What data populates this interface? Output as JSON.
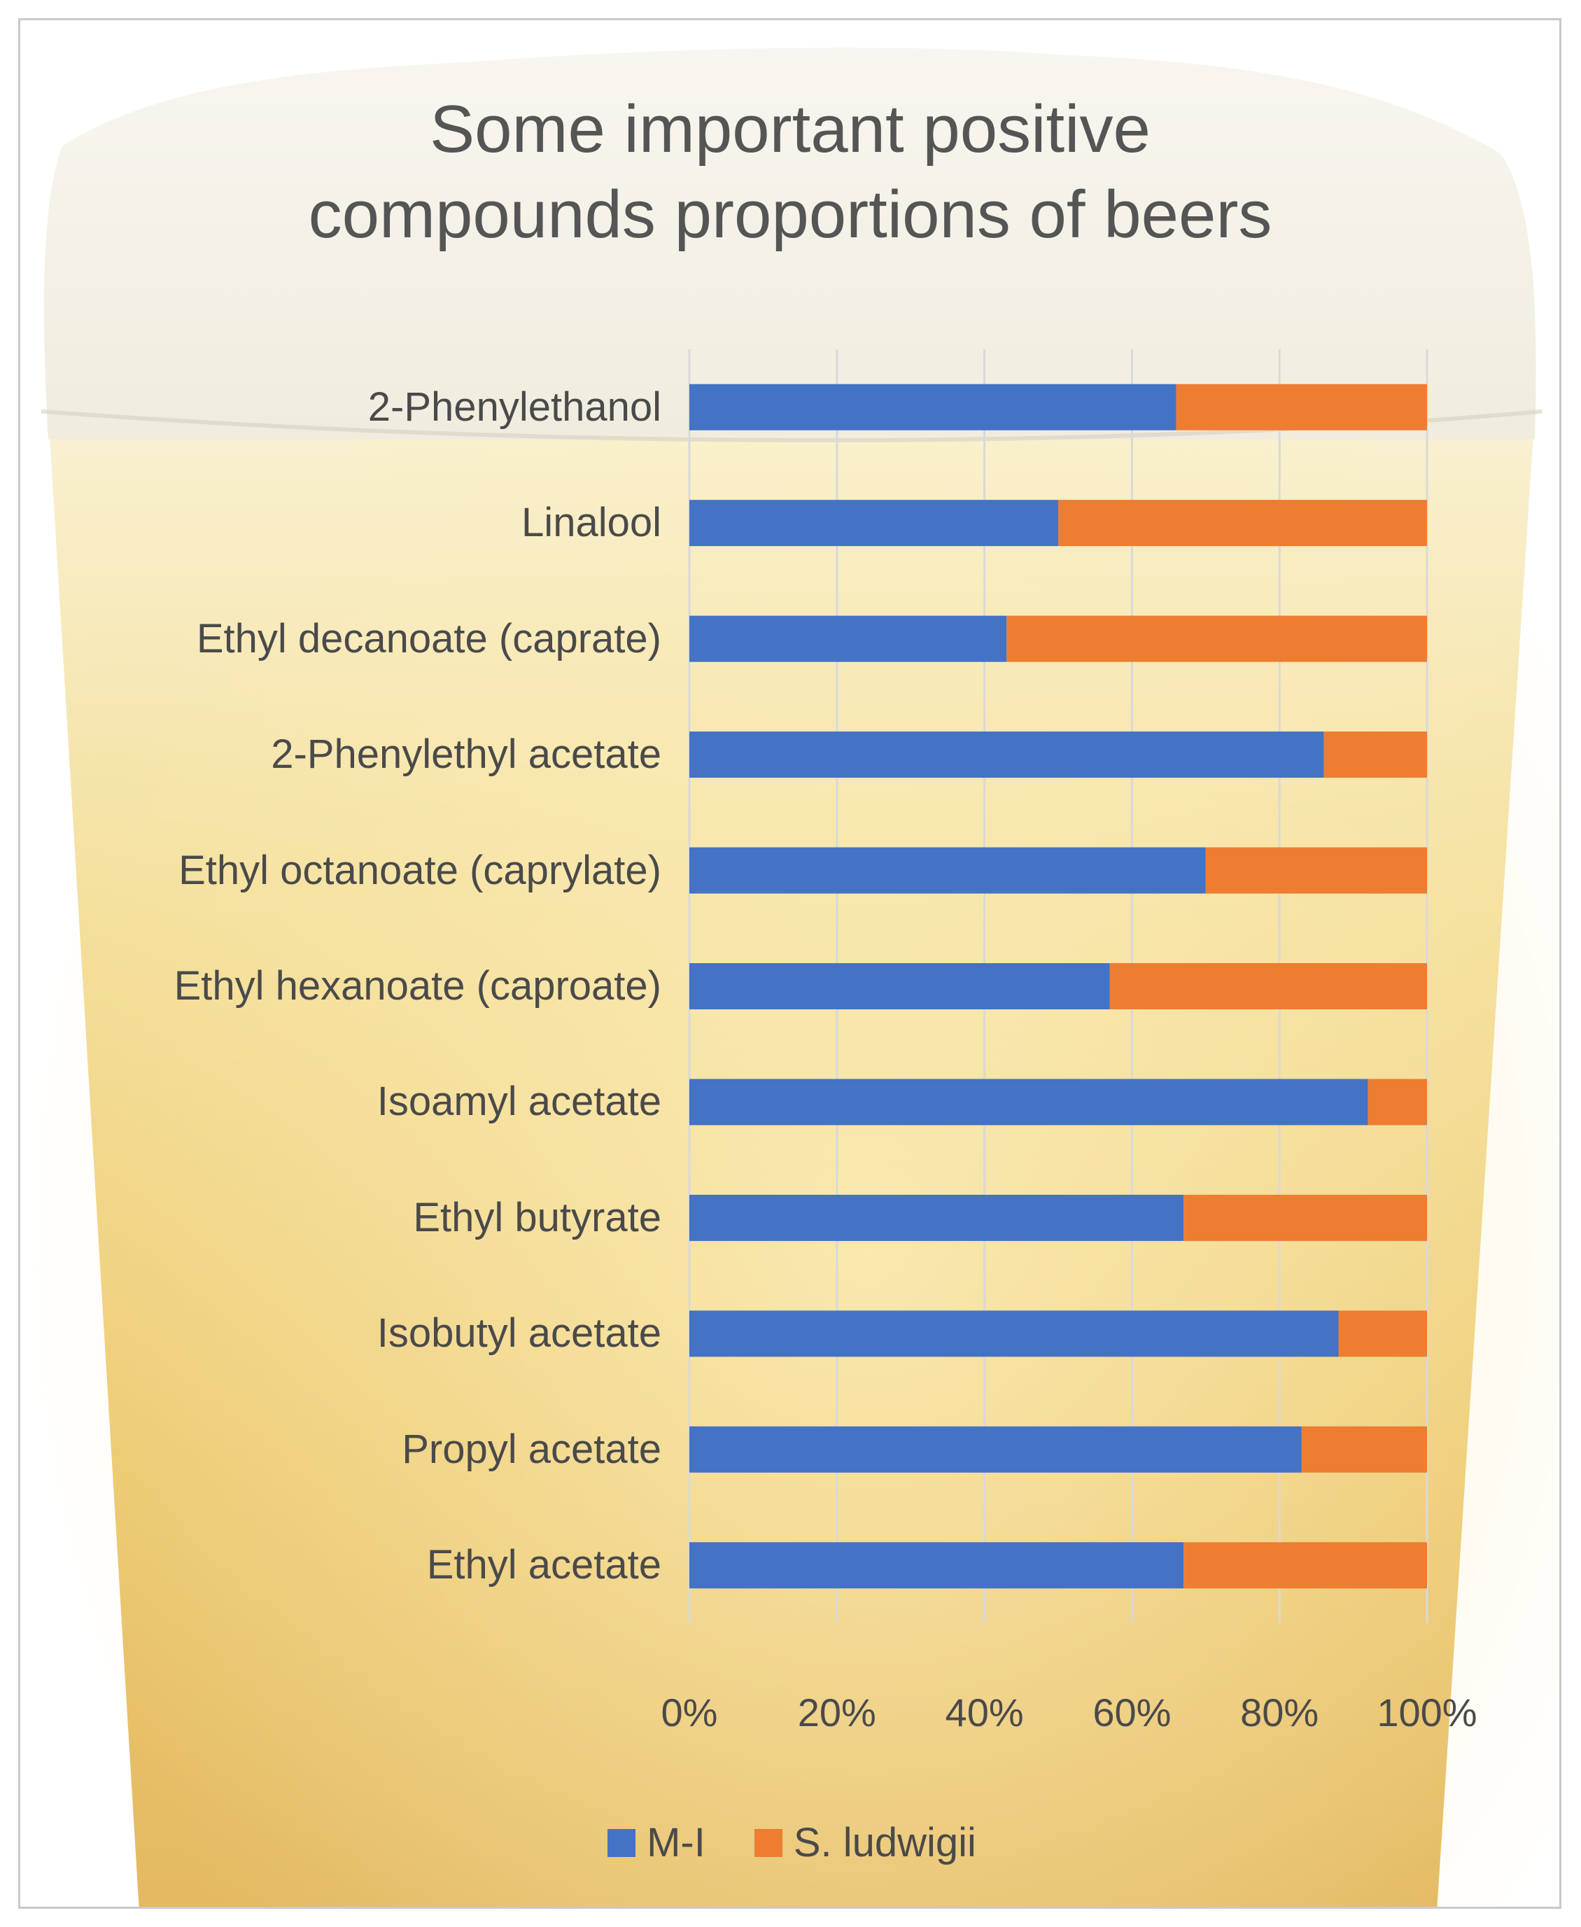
{
  "colors": {
    "series_1": "#4472C4",
    "series_2": "#ED7D31",
    "text": "#555555",
    "grid": "#d9d9d9",
    "foam": "#f2efe4",
    "beer": "#e8b93a"
  },
  "chart_data": {
    "type": "bar",
    "orientation": "horizontal",
    "stacked": "percent",
    "title": "Some important positive compounds proportions of beers",
    "title_lines": [
      "Some important positive",
      "compounds proportions of beers"
    ],
    "categories": [
      "2-Phenylethanol",
      "Linalool",
      "Ethyl decanoate (caprate)",
      "2-Phenylethyl acetate",
      "Ethyl octanoate (caprylate)",
      "Ethyl hexanoate (caproate)",
      "Isoamyl acetate",
      "Ethyl butyrate",
      "Isobutyl acetate",
      "Propyl acetate",
      "Ethyl acetate"
    ],
    "series": [
      {
        "name": "M-I",
        "values": [
          66,
          50,
          43,
          86,
          70,
          57,
          92,
          67,
          88,
          83,
          67
        ]
      },
      {
        "name": "S. ludwigii",
        "values": [
          34,
          50,
          57,
          14,
          30,
          43,
          8,
          33,
          12,
          17,
          33
        ]
      }
    ],
    "xlim": [
      0,
      100
    ],
    "x_ticks": [
      "0%",
      "20%",
      "40%",
      "60%",
      "80%",
      "100%"
    ],
    "grid": true,
    "legend_position": "bottom"
  }
}
